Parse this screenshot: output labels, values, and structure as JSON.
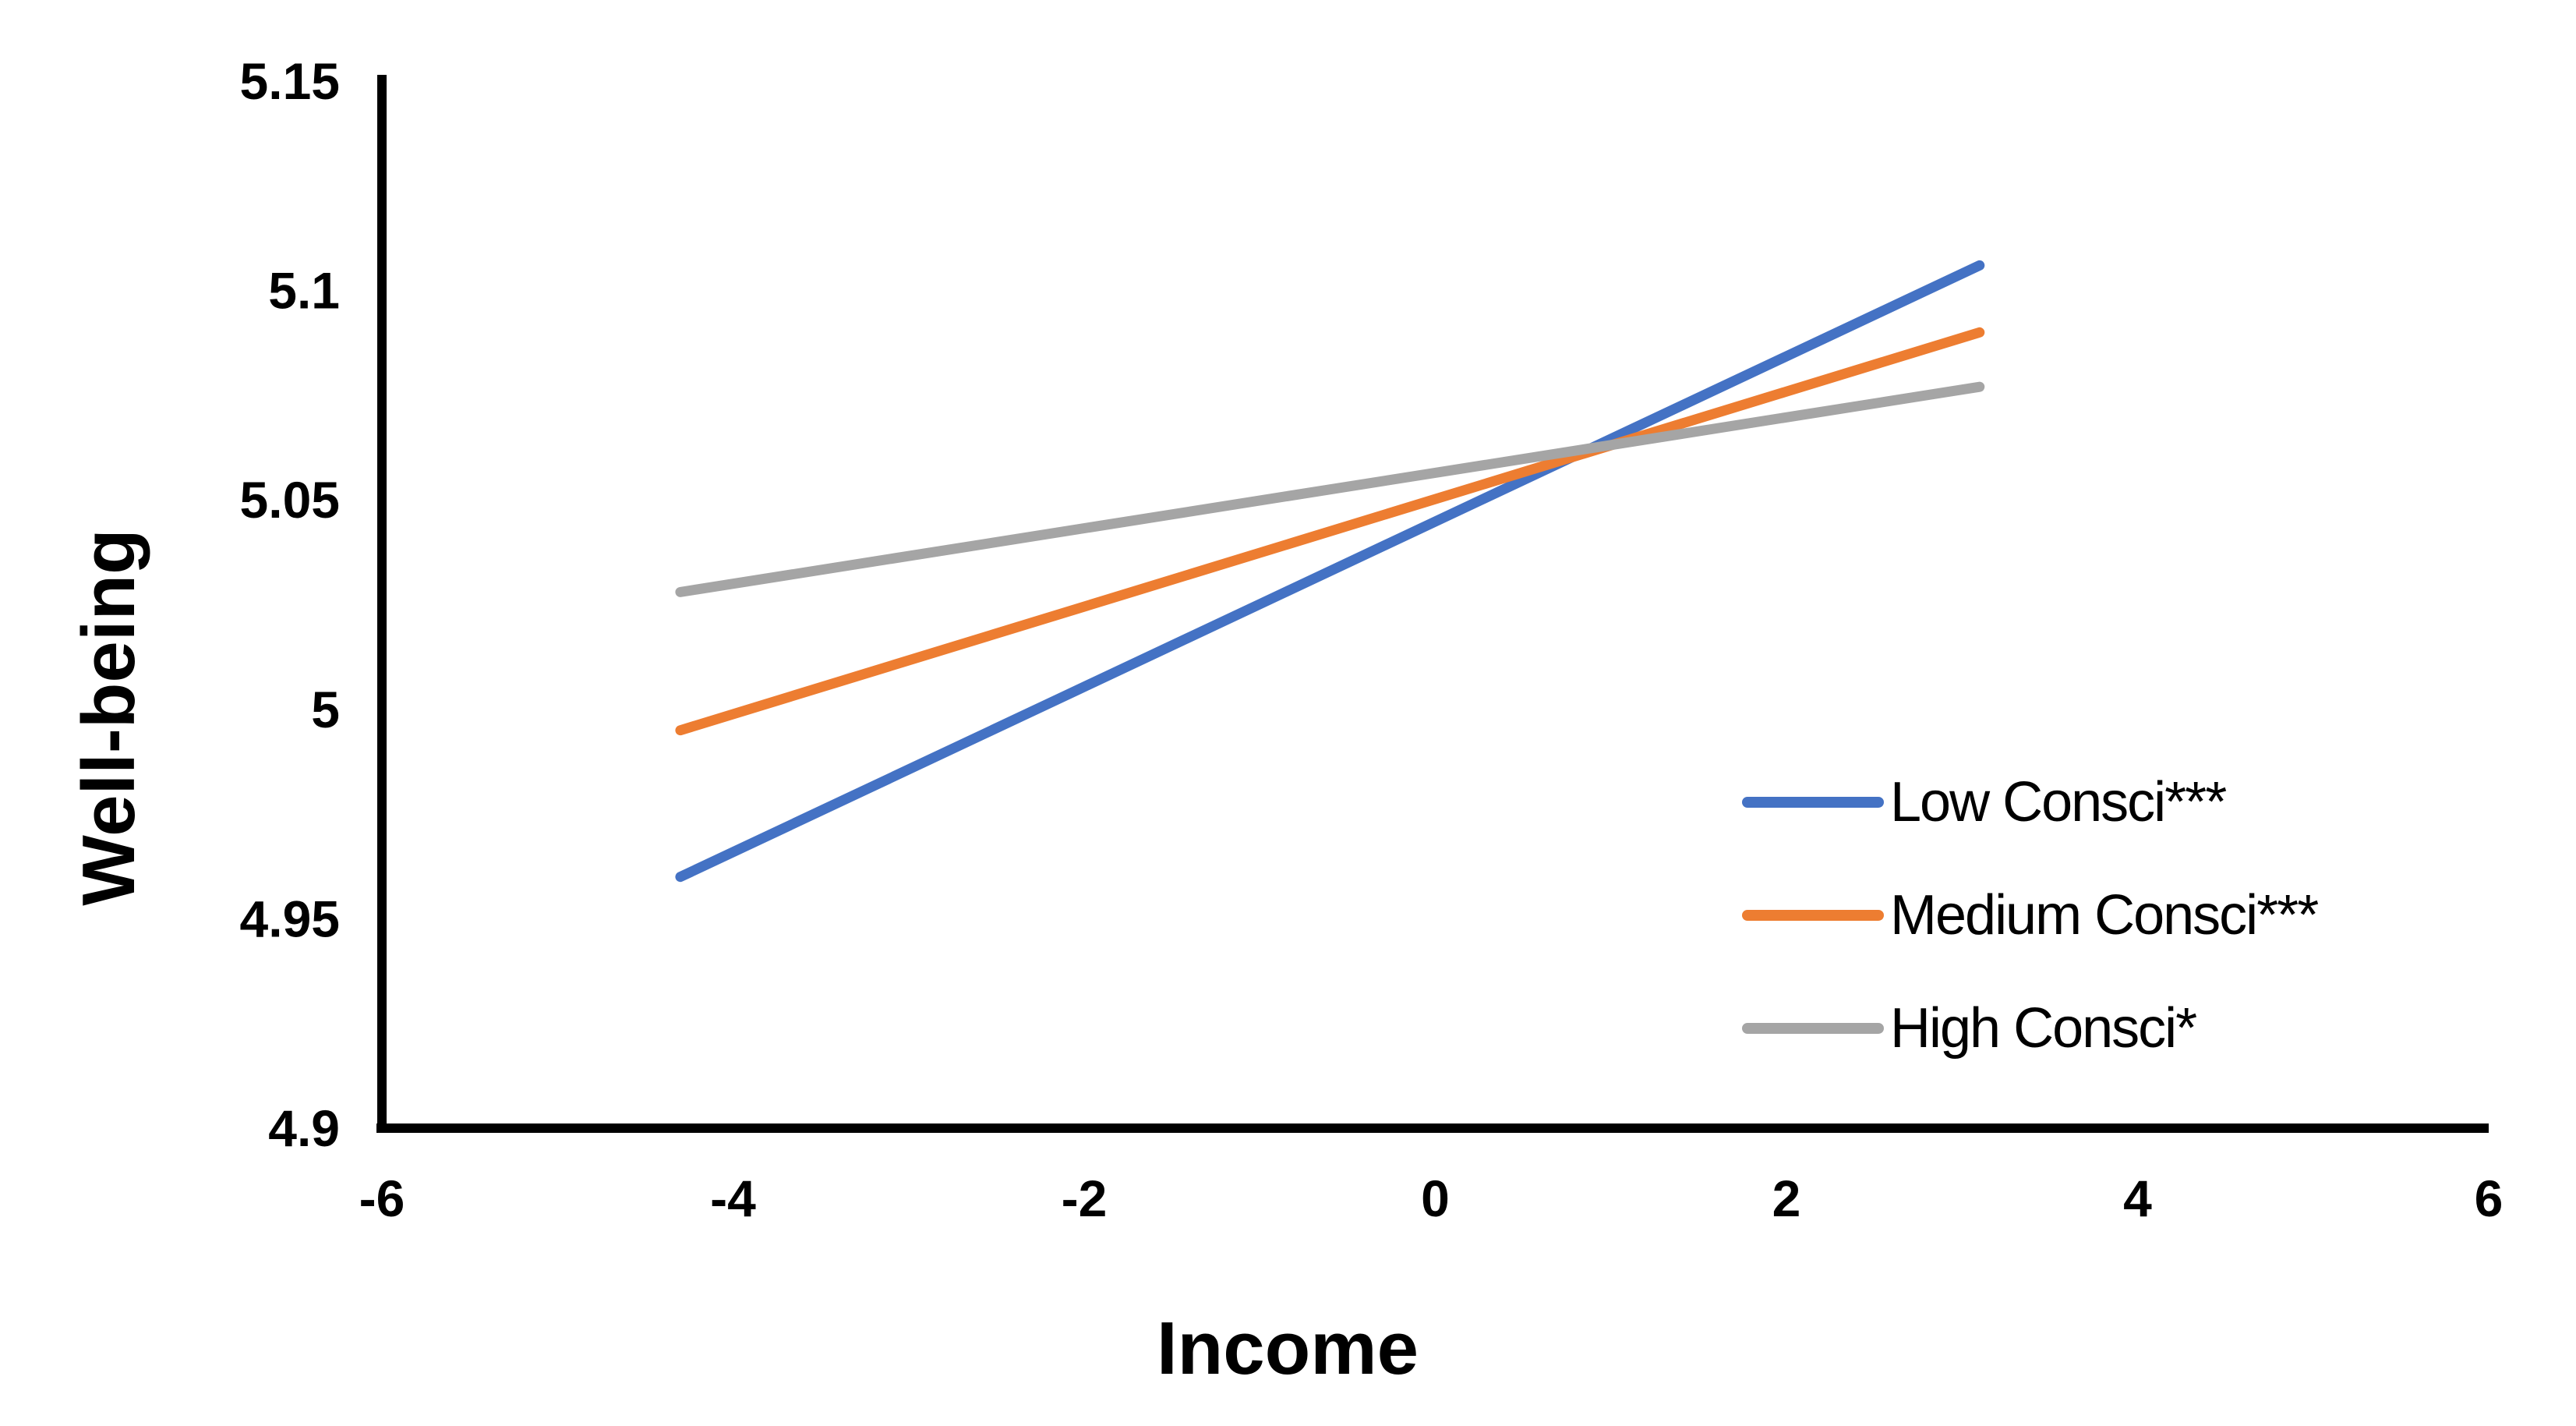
{
  "figure": {
    "background_color": "#ffffff",
    "title": ""
  },
  "chart_data": {
    "type": "line",
    "title": "",
    "xlabel": "Income",
    "ylabel": "Well-being",
    "xlim": [
      -6,
      6
    ],
    "ylim": [
      4.9,
      5.15
    ],
    "xticks": [
      -6,
      -4,
      -2,
      0,
      2,
      4,
      6
    ],
    "xtick_labels": [
      "-6",
      "-4",
      "-2",
      "0",
      "2",
      "4",
      "6"
    ],
    "yticks": [
      4.9,
      4.95,
      5,
      5.05,
      5.1,
      5.15
    ],
    "ytick_labels": [
      "4.9",
      "4.95",
      "5",
      "5.05",
      "5.1",
      "5.15"
    ],
    "grid": false,
    "axis_color": "#000000",
    "legend_position": "inside-right",
    "x": [
      -4.3,
      3.1
    ],
    "series": [
      {
        "name": "Low Consci***",
        "color": "#4472C4",
        "values": [
          4.96,
          5.106
        ]
      },
      {
        "name": "Medium Consci***",
        "color": "#ED7D31",
        "values": [
          4.995,
          5.09
        ]
      },
      {
        "name": "High Consci*",
        "color": "#A5A5A5",
        "values": [
          5.028,
          5.077
        ]
      }
    ]
  }
}
